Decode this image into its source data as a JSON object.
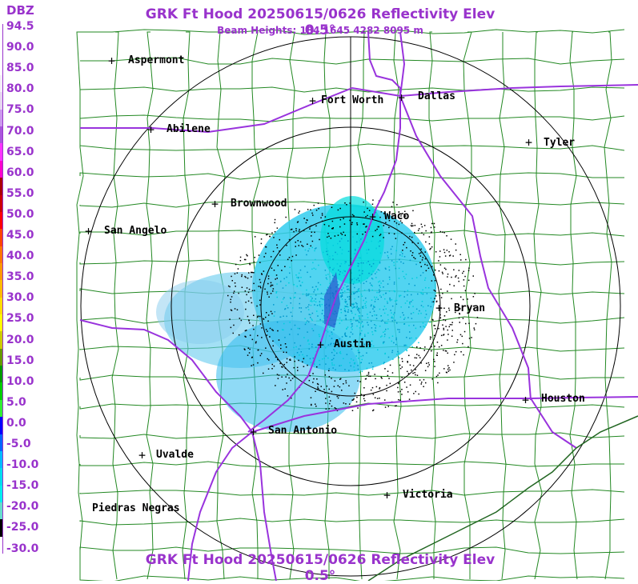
{
  "title": "GRK Ft Hood 20250615/0626 Reflectivity Elev 0.5°",
  "subtitle": "Beam Heights: 184 1645 4282 8095 m",
  "legend": {
    "unit": "DBZ",
    "labels": [
      "94.5",
      "90.0",
      "85.0",
      "80.0",
      "75.0",
      "70.0",
      "65.0",
      "60.0",
      "55.0",
      "50.0",
      "45.0",
      "40.0",
      "35.0",
      "30.0",
      "25.0",
      "20.0",
      "15.0",
      "10.0",
      "5.0",
      "0.0",
      "-5.0",
      "-10.0",
      "-15.0",
      "-20.0",
      "-25.0",
      "-30.0"
    ],
    "colors": [
      "#ffffff",
      "#ffffff",
      "#ffffff",
      "#f4eef8",
      "#e6d6f0",
      "#cc99ee",
      "#aa55dd",
      "#ff33ff",
      "#ff00cc",
      "#aa0000",
      "#cc0000",
      "#ff0000",
      "#ff4400",
      "#ff7700",
      "#ff9900",
      "#ffbb00",
      "#ffdd00",
      "#ffff00",
      "#cccc00",
      "#669900",
      "#009900",
      "#00cc00",
      "#33ee33",
      "#0000ff",
      "#0066ff",
      "#00bbff",
      "#00ddee",
      "#00eeee",
      "#66ddcc",
      "#000000",
      "#ffffff"
    ]
  },
  "cities": [
    {
      "name": "Aspermont"
    },
    {
      "name": "Abilene"
    },
    {
      "name": "Fort Worth"
    },
    {
      "name": "Dallas"
    },
    {
      "name": "Tyler"
    },
    {
      "name": "Brownwood"
    },
    {
      "name": "Waco"
    },
    {
      "name": "San Angelo"
    },
    {
      "name": "Bryan"
    },
    {
      "name": "Austin"
    },
    {
      "name": "Houston"
    },
    {
      "name": "San Antonio"
    },
    {
      "name": "Uvalde"
    },
    {
      "name": "Victoria"
    },
    {
      "name": "Piedras Negras"
    }
  ]
}
